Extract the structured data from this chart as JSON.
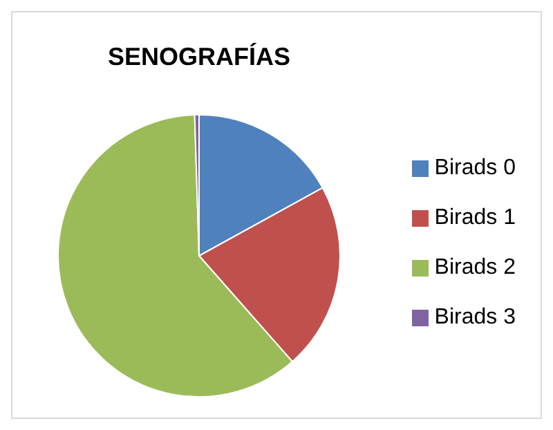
{
  "chart_data": {
    "type": "pie",
    "title": "SENOGRAFÍAS",
    "categories": [
      "Birads 0",
      "Birads 1",
      "Birads 2",
      "Birads 3"
    ],
    "values": [
      17,
      21.5,
      61,
      0.5
    ],
    "colors": [
      "#4f81bd",
      "#c0504d",
      "#9bbb59",
      "#8064a2"
    ],
    "legend": "right"
  }
}
